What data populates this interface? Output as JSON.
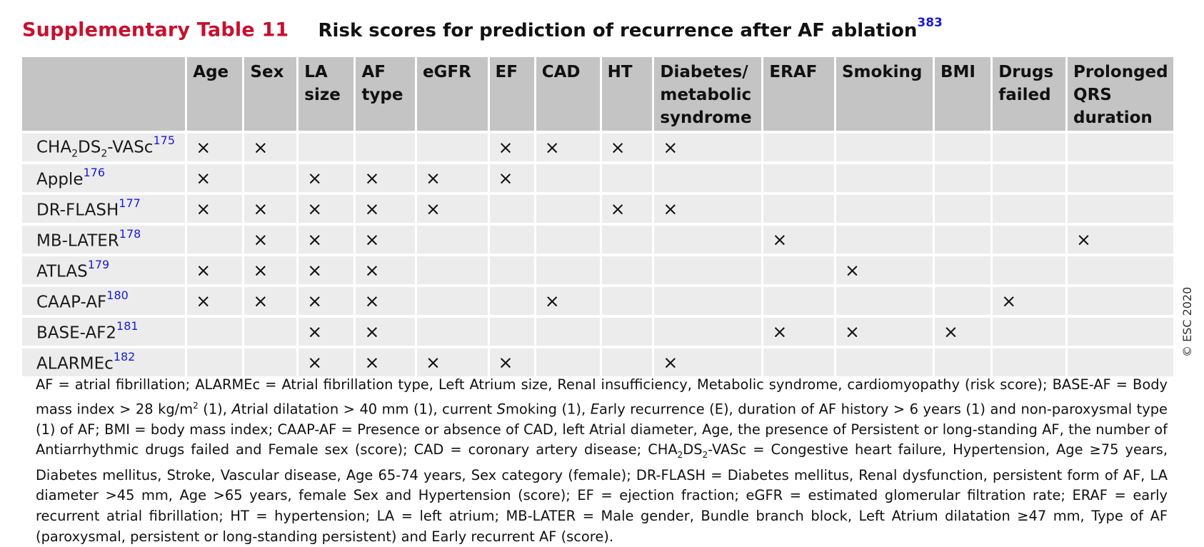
{
  "caption": {
    "label": "Supplementary Table 11",
    "title": "Risk scores for prediction of recurrence after AF ablation",
    "title_ref": "383"
  },
  "columns": [
    "",
    "Age",
    "Sex",
    "LA size",
    "AF type",
    "eGFR",
    "EF",
    "CAD",
    "HT",
    "Diabetes/ metabolic syndrome",
    "ERAF",
    "Smoking",
    "BMI",
    "Drugs failed",
    "Prolonged QRS duration"
  ],
  "rows": [
    {
      "name_html": "CHA<sub>2</sub>DS<sub>2</sub>-VASc<sup>175</sup>",
      "name": "CHA2DS2-VASc",
      "ref": "175",
      "cells": [
        "X",
        "X",
        "",
        "",
        "",
        "X",
        "X",
        "X",
        "X",
        "",
        "",
        "",
        "",
        ""
      ]
    },
    {
      "name_html": "Apple<sup>176</sup>",
      "name": "Apple",
      "ref": "176",
      "cells": [
        "X",
        "",
        "X",
        "X",
        "X",
        "X",
        "",
        "",
        "",
        "",
        "",
        "",
        "",
        ""
      ]
    },
    {
      "name_html": "DR-FLASH<sup>177</sup>",
      "name": "DR-FLASH",
      "ref": "177",
      "cells": [
        "X",
        "X",
        "X",
        "X",
        "X",
        "",
        "",
        "X",
        "X",
        "",
        "",
        "",
        "",
        ""
      ]
    },
    {
      "name_html": "MB-LATER<sup>178</sup>",
      "name": "MB-LATER",
      "ref": "178",
      "cells": [
        "",
        "X",
        "X",
        "X",
        "",
        "",
        "",
        "",
        "",
        "X",
        "",
        "",
        "",
        "X"
      ]
    },
    {
      "name_html": "ATLAS<sup>179</sup>",
      "name": "ATLAS",
      "ref": "179",
      "cells": [
        "X",
        "X",
        "X",
        "X",
        "",
        "",
        "",
        "",
        "",
        "",
        "X",
        "",
        "",
        ""
      ]
    },
    {
      "name_html": "CAAP-AF<sup>180</sup>",
      "name": "CAAP-AF",
      "ref": "180",
      "cells": [
        "X",
        "X",
        "X",
        "X",
        "",
        "",
        "X",
        "",
        "",
        "",
        "",
        "",
        "X",
        ""
      ]
    },
    {
      "name_html": "BASE-AF2<sup>181</sup>",
      "name": "BASE-AF2",
      "ref": "181",
      "cells": [
        "",
        "",
        "X",
        "X",
        "",
        "",
        "",
        "",
        "",
        "X",
        "X",
        "X",
        "",
        ""
      ]
    },
    {
      "name_html": "ALARMEc<sup>182</sup>",
      "name": "ALARMEc",
      "ref": "182",
      "cells": [
        "",
        "",
        "X",
        "X",
        "X",
        "X",
        "",
        "",
        "X",
        "",
        "",
        "",
        "",
        ""
      ]
    }
  ],
  "mark_glyph": "×",
  "copyright": "© ESC 2020",
  "footnote_html": "AF = atrial fibrillation; ALARMEc = Atrial fibrillation type, Left Atrium size, Renal insufficiency, Metabolic syndrome, cardiomyopathy (risk score); BASE-AF = Body mass index &gt; 28 kg/m<sup>2</sup> (1), <i>A</i>trial dilatation &gt; 40 mm (1), current <i>S</i>moking (1), <i>E</i>arly recurrence (E), duration of AF history &gt; 6 years (1) and non-paroxysmal type (1) of AF; BMI = body mass index; CAAP-AF = Presence or absence of CAD, left Atrial diameter, Age, the presence of Persistent or long-standing AF, the number of Antiarrhythmic drugs failed and Female sex (score); CAD = coronary artery disease; CHA<sub>2</sub>DS<sub>2</sub>-VASc = Congestive heart failure, Hypertension, Age ≥75 years, Diabetes mellitus, Stroke, Vascular disease, Age 65-74 years, Sex category (female); DR-FLASH = Diabetes mellitus, Renal dysfunction, persistent form of AF, LA diameter &gt;45 mm, Age &gt;65 years, female Sex and Hypertension (score); EF = ejection fraction; eGFR = estimated glomerular filtration rate; ERAF = early recurrent atrial fibrillation; HT = hypertension; LA = left atrium; MB-LATER = Male gender, Bundle branch block, Left Atrium dilatation ≥47 mm, Type of AF (paroxysmal, persistent or long-standing persistent) and Early recurrent AF (score)."
}
